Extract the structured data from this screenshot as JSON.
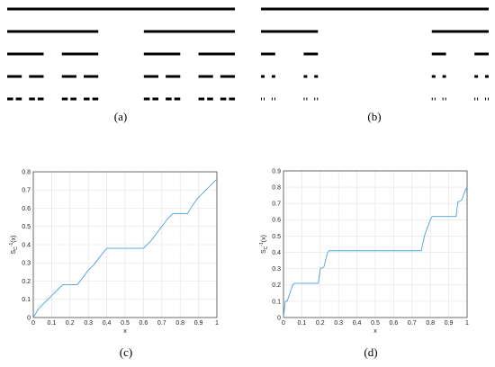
{
  "panels": {
    "a": {
      "label": "(a)"
    },
    "b": {
      "label": "(b)"
    },
    "c": {
      "label": "(c)"
    },
    "d": {
      "label": "(d)"
    }
  },
  "cantor_a": {
    "levels": [
      [
        [
          0,
          1
        ]
      ],
      [
        [
          0,
          0.4
        ],
        [
          0.6,
          1
        ]
      ],
      [
        [
          0,
          0.16
        ],
        [
          0.24,
          0.4
        ],
        [
          0.6,
          0.76
        ],
        [
          0.84,
          1
        ]
      ],
      [
        [
          0,
          0.064
        ],
        [
          0.096,
          0.16
        ],
        [
          0.24,
          0.304
        ],
        [
          0.336,
          0.4
        ],
        [
          0.6,
          0.664
        ],
        [
          0.696,
          0.76
        ],
        [
          0.84,
          0.904
        ],
        [
          0.936,
          1
        ]
      ],
      [
        [
          0,
          0.026
        ],
        [
          0.038,
          0.064
        ],
        [
          0.096,
          0.122
        ],
        [
          0.134,
          0.16
        ],
        [
          0.24,
          0.266
        ],
        [
          0.278,
          0.304
        ],
        [
          0.336,
          0.362
        ],
        [
          0.374,
          0.4
        ],
        [
          0.6,
          0.626
        ],
        [
          0.638,
          0.664
        ],
        [
          0.696,
          0.722
        ],
        [
          0.734,
          0.76
        ],
        [
          0.84,
          0.866
        ],
        [
          0.878,
          0.904
        ],
        [
          0.936,
          0.962
        ],
        [
          0.974,
          1
        ]
      ]
    ]
  },
  "cantor_b": {
    "levels": [
      [
        [
          0,
          1
        ]
      ],
      [
        [
          0,
          0.25
        ],
        [
          0.75,
          1
        ]
      ],
      [
        [
          0,
          0.0625
        ],
        [
          0.1875,
          0.25
        ],
        [
          0.75,
          0.8125
        ],
        [
          0.9375,
          1
        ]
      ],
      [
        [
          0,
          0.016
        ],
        [
          0.047,
          0.0625
        ],
        [
          0.1875,
          0.203
        ],
        [
          0.234,
          0.25
        ],
        [
          0.75,
          0.766
        ],
        [
          0.797,
          0.8125
        ],
        [
          0.9375,
          0.953
        ],
        [
          0.984,
          1
        ]
      ],
      [
        [
          0,
          0.004
        ],
        [
          0.012,
          0.016
        ],
        [
          0.047,
          0.051
        ],
        [
          0.059,
          0.0625
        ],
        [
          0.1875,
          0.191
        ],
        [
          0.199,
          0.203
        ],
        [
          0.234,
          0.238
        ],
        [
          0.246,
          0.25
        ],
        [
          0.75,
          0.754
        ],
        [
          0.762,
          0.766
        ],
        [
          0.797,
          0.801
        ],
        [
          0.809,
          0.8125
        ],
        [
          0.9375,
          0.941
        ],
        [
          0.949,
          0.953
        ],
        [
          0.984,
          0.988
        ],
        [
          0.996,
          1
        ]
      ]
    ]
  },
  "chart_data": [
    {
      "type": "line",
      "xlabel": "x",
      "ylabel": "S_C^{-1}(x)",
      "xlim": [
        0,
        1
      ],
      "ylim": [
        0,
        0.8
      ],
      "grid": true,
      "x_ticks": [
        "0",
        "0.1",
        "0.2",
        "0.3",
        "0.4",
        "0.5",
        "0.6",
        "0.7",
        "0.8",
        "0.9",
        "1"
      ],
      "y_ticks": [
        "0",
        "0.1",
        "0.2",
        "0.3",
        "0.4",
        "0.5",
        "0.6",
        "0.7",
        "0.8"
      ],
      "color": "#4aa3d8",
      "series": [
        {
          "x": [
            0,
            0.03,
            0.05,
            0.08,
            0.1,
            0.13,
            0.16,
            0.24,
            0.27,
            0.3,
            0.33,
            0.36,
            0.4,
            0.6,
            0.64,
            0.67,
            0.7,
            0.73,
            0.76,
            0.84,
            0.87,
            0.9,
            0.93,
            0.96,
            1
          ],
          "y": [
            0,
            0.05,
            0.07,
            0.1,
            0.12,
            0.15,
            0.18,
            0.18,
            0.22,
            0.26,
            0.29,
            0.33,
            0.38,
            0.38,
            0.42,
            0.46,
            0.5,
            0.54,
            0.57,
            0.57,
            0.62,
            0.66,
            0.69,
            0.72,
            0.76
          ]
        }
      ]
    },
    {
      "type": "line",
      "xlabel": "x",
      "ylabel": "S_C^{-1}(x)",
      "xlim": [
        0,
        1
      ],
      "ylim": [
        0,
        0.9
      ],
      "grid": true,
      "x_ticks": [
        "0",
        "0.1",
        "0.2",
        "0.3",
        "0.4",
        "0.5",
        "0.6",
        "0.7",
        "0.8",
        "0.9",
        "1"
      ],
      "y_ticks": [
        "0",
        "0.1",
        "0.2",
        "0.3",
        "0.4",
        "0.5",
        "0.6",
        "0.7",
        "0.8",
        "0.9"
      ],
      "color": "#4aa3d8",
      "series": [
        {
          "x": [
            0,
            0.01,
            0.02,
            0.05,
            0.06,
            0.19,
            0.2,
            0.22,
            0.24,
            0.25,
            0.75,
            0.77,
            0.8,
            0.81,
            0.94,
            0.95,
            0.97,
            0.99,
            1
          ],
          "y": [
            0,
            0.1,
            0.1,
            0.2,
            0.21,
            0.21,
            0.3,
            0.31,
            0.4,
            0.41,
            0.41,
            0.51,
            0.6,
            0.62,
            0.62,
            0.71,
            0.72,
            0.78,
            0.8
          ]
        }
      ]
    }
  ]
}
